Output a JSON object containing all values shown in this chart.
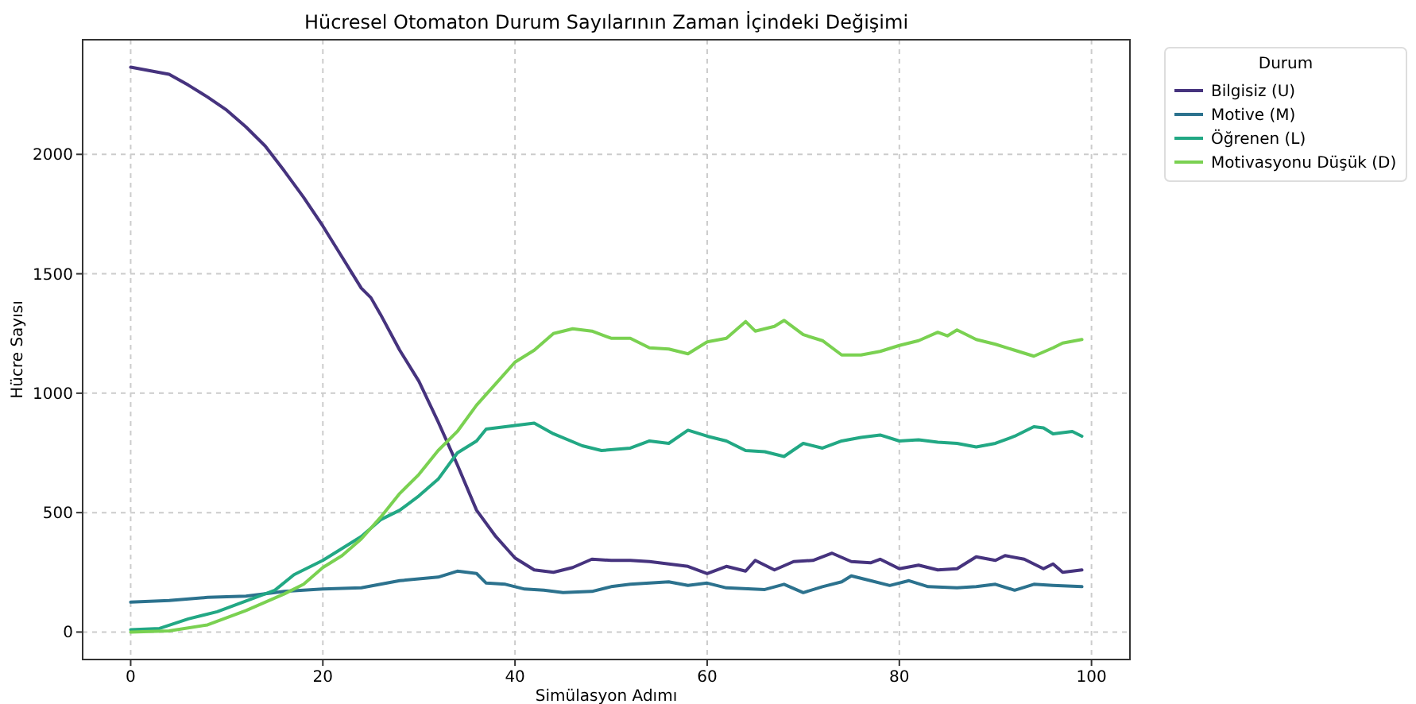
{
  "chart_data": {
    "type": "line",
    "title": "Hücresel Otomaton Durum Sayılarının Zaman İçindeki Değişimi",
    "xlabel": "Simülasyon Adımı",
    "ylabel": "Hücre Sayısı",
    "legend_title": "Durum",
    "legend": "right",
    "grid": true,
    "line_style": "solid",
    "marker": "none",
    "xlim": [
      -5,
      104
    ],
    "ylim": [
      -115,
      2480
    ],
    "xticks": [
      0,
      20,
      40,
      60,
      80,
      100
    ],
    "yticks": [
      0,
      500,
      1000,
      1500,
      2000
    ],
    "series": [
      {
        "name": "Bilgisiz (U)",
        "color": "#46337e",
        "x": [
          0,
          2,
          4,
          6,
          8,
          10,
          12,
          14,
          16,
          18,
          20,
          22,
          24,
          25,
          26,
          28,
          30,
          32,
          34,
          36,
          38,
          40,
          42,
          44,
          46,
          48,
          50,
          52,
          54,
          56,
          58,
          60,
          62,
          64,
          65,
          67,
          69,
          71,
          73,
          75,
          77,
          78,
          80,
          82,
          84,
          86,
          88,
          90,
          91,
          93,
          95,
          96,
          97,
          99
        ],
        "values": [
          2365,
          2350,
          2335,
          2290,
          2240,
          2185,
          2115,
          2035,
          1930,
          1820,
          1700,
          1570,
          1440,
          1400,
          1330,
          1180,
          1050,
          880,
          700,
          510,
          400,
          310,
          260,
          250,
          270,
          305,
          300,
          300,
          295,
          285,
          275,
          245,
          275,
          255,
          300,
          260,
          295,
          300,
          330,
          295,
          290,
          305,
          265,
          280,
          260,
          265,
          315,
          300,
          320,
          305,
          265,
          285,
          250,
          260
        ]
      },
      {
        "name": "Motive (M)",
        "color": "#2c728e",
        "x": [
          0,
          4,
          8,
          12,
          16,
          20,
          24,
          28,
          32,
          34,
          36,
          37,
          39,
          41,
          43,
          45,
          48,
          50,
          52,
          56,
          58,
          60,
          62,
          66,
          68,
          70,
          72,
          74,
          75,
          77,
          79,
          81,
          83,
          86,
          88,
          90,
          92,
          94,
          96,
          99
        ],
        "values": [
          125,
          132,
          145,
          150,
          170,
          180,
          185,
          215,
          230,
          255,
          245,
          205,
          200,
          180,
          175,
          165,
          170,
          190,
          200,
          210,
          195,
          205,
          185,
          178,
          200,
          165,
          190,
          210,
          235,
          215,
          195,
          215,
          190,
          185,
          190,
          200,
          175,
          200,
          195,
          190
        ]
      },
      {
        "name": "Öğrenen (L)",
        "color": "#22a884",
        "x": [
          0,
          3,
          6,
          9,
          12,
          15,
          17,
          20,
          22,
          24,
          26,
          28,
          30,
          32,
          34,
          36,
          37,
          40,
          42,
          44,
          47,
          49,
          52,
          54,
          56,
          58,
          60,
          62,
          64,
          66,
          68,
          70,
          72,
          74,
          76,
          78,
          80,
          82,
          84,
          86,
          88,
          90,
          92,
          94,
          95,
          96,
          98,
          99
        ],
        "values": [
          10,
          15,
          55,
          85,
          130,
          175,
          240,
          300,
          350,
          400,
          470,
          510,
          570,
          640,
          750,
          800,
          850,
          865,
          875,
          830,
          780,
          760,
          770,
          800,
          790,
          845,
          820,
          800,
          760,
          755,
          735,
          790,
          770,
          800,
          815,
          825,
          800,
          805,
          795,
          790,
          775,
          790,
          820,
          860,
          855,
          830,
          840,
          820
        ]
      },
      {
        "name": "Motivasyonu Düşük (D)",
        "color": "#7ad151",
        "x": [
          0,
          4,
          8,
          12,
          16,
          18,
          20,
          22,
          24,
          26,
          28,
          30,
          32,
          34,
          36,
          38,
          40,
          42,
          44,
          46,
          48,
          50,
          52,
          54,
          56,
          58,
          60,
          62,
          64,
          65,
          67,
          68,
          70,
          72,
          74,
          76,
          78,
          80,
          82,
          84,
          85,
          86,
          88,
          90,
          92,
          94,
          96,
          97,
          99
        ],
        "values": [
          0,
          5,
          30,
          90,
          160,
          200,
          270,
          320,
          390,
          480,
          580,
          660,
          760,
          840,
          950,
          1040,
          1130,
          1180,
          1250,
          1270,
          1260,
          1230,
          1230,
          1190,
          1185,
          1165,
          1215,
          1230,
          1300,
          1260,
          1280,
          1305,
          1245,
          1220,
          1160,
          1160,
          1175,
          1200,
          1220,
          1255,
          1240,
          1265,
          1225,
          1205,
          1180,
          1155,
          1190,
          1210,
          1225
        ]
      }
    ]
  }
}
